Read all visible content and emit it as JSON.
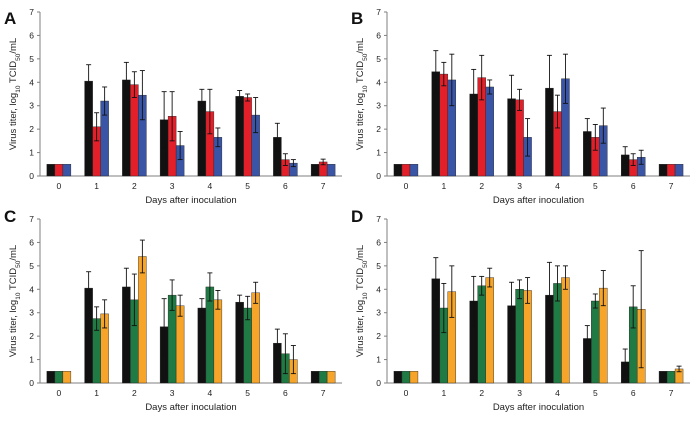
{
  "colors": {
    "black": "#111111",
    "red": "#e3202a",
    "blue": "#3a55a6",
    "green": "#1f7a44",
    "orange": "#f6a52a",
    "axis": "#7f7f7f"
  },
  "chart_data": [
    {
      "type": "bar",
      "panel": "A",
      "categories": [
        "0",
        "1",
        "2",
        "3",
        "4",
        "5",
        "6",
        "7"
      ],
      "xlabel": "Days after inoculation",
      "ylabel": "Virus titer, log10 TCID50/mL",
      "ylim": [
        0,
        7
      ],
      "yticks": [
        0,
        1,
        2,
        3,
        4,
        5,
        6,
        7
      ],
      "error_bars": true,
      "series": [
        {
          "color": "#111111",
          "values": [
            0.5,
            4.05,
            4.1,
            2.4,
            3.2,
            3.4,
            1.65,
            0.5
          ],
          "errors": [
            0,
            0.7,
            0.75,
            1.2,
            0.5,
            0.25,
            0.6,
            0
          ]
        },
        {
          "color": "#e3202a",
          "values": [
            0.5,
            2.1,
            3.9,
            2.55,
            2.75,
            3.35,
            0.7,
            0.6
          ],
          "errors": [
            0,
            0.6,
            0.55,
            1.05,
            0.95,
            0.15,
            0.25,
            0.12
          ]
        },
        {
          "color": "#3a55a6",
          "values": [
            0.5,
            3.2,
            3.45,
            1.3,
            1.65,
            2.6,
            0.55,
            0.5
          ],
          "errors": [
            0,
            0.6,
            1.05,
            0.6,
            0.4,
            0.75,
            0.15,
            0
          ]
        }
      ]
    },
    {
      "type": "bar",
      "panel": "B",
      "categories": [
        "0",
        "1",
        "2",
        "3",
        "4",
        "5",
        "6",
        "7"
      ],
      "xlabel": "Days after inoculation",
      "ylabel": "Virus titer, log10 TCID50/mL",
      "ylim": [
        0,
        7
      ],
      "yticks": [
        0,
        1,
        2,
        3,
        4,
        5,
        6,
        7
      ],
      "error_bars": true,
      "series": [
        {
          "color": "#111111",
          "values": [
            0.5,
            4.45,
            3.5,
            3.3,
            3.75,
            1.9,
            0.9,
            0.5
          ],
          "errors": [
            0,
            0.9,
            1.05,
            1.0,
            1.4,
            0.55,
            0.35,
            0
          ]
        },
        {
          "color": "#e3202a",
          "values": [
            0.5,
            4.35,
            4.2,
            3.25,
            2.75,
            1.65,
            0.7,
            0.5
          ],
          "errors": [
            0,
            0.5,
            0.95,
            0.45,
            0.7,
            0.55,
            0.25,
            0
          ]
        },
        {
          "color": "#3a55a6",
          "values": [
            0.5,
            4.1,
            3.8,
            1.65,
            4.15,
            2.15,
            0.8,
            0.5
          ],
          "errors": [
            0,
            1.1,
            0.3,
            0.8,
            1.05,
            0.75,
            0.3,
            0
          ]
        }
      ]
    },
    {
      "type": "bar",
      "panel": "C",
      "categories": [
        "0",
        "1",
        "2",
        "3",
        "4",
        "5",
        "6",
        "7"
      ],
      "xlabel": "Days after inoculation",
      "ylabel": "Virus titer, log10 TCID50/mL",
      "ylim": [
        0,
        7
      ],
      "yticks": [
        0,
        1,
        2,
        3,
        4,
        5,
        6,
        7
      ],
      "error_bars": true,
      "series": [
        {
          "color": "#111111",
          "values": [
            0.5,
            4.05,
            4.1,
            2.4,
            3.2,
            3.45,
            1.7,
            0.5
          ],
          "errors": [
            0,
            0.7,
            0.8,
            1.2,
            0.4,
            0.3,
            0.6,
            0
          ]
        },
        {
          "color": "#1f7a44",
          "values": [
            0.5,
            2.75,
            3.55,
            3.75,
            4.1,
            3.2,
            1.25,
            0.5
          ],
          "errors": [
            0,
            0.5,
            1.1,
            0.65,
            0.6,
            0.5,
            0.85,
            0
          ]
        },
        {
          "color": "#f6a52a",
          "values": [
            0.5,
            2.95,
            5.4,
            3.3,
            3.55,
            3.85,
            1.0,
            0.5
          ],
          "errors": [
            0,
            0.6,
            0.7,
            0.45,
            0.4,
            0.45,
            0.6,
            0
          ]
        }
      ]
    },
    {
      "type": "bar",
      "panel": "D",
      "categories": [
        "0",
        "1",
        "2",
        "3",
        "4",
        "5",
        "6",
        "7"
      ],
      "xlabel": "Days after inoculation",
      "ylabel": "Virus titer, log10 TCID50/mL",
      "ylim": [
        0,
        7
      ],
      "yticks": [
        0,
        1,
        2,
        3,
        4,
        5,
        6,
        7
      ],
      "error_bars": true,
      "series": [
        {
          "color": "#111111",
          "values": [
            0.5,
            4.45,
            3.5,
            3.3,
            3.75,
            1.9,
            0.9,
            0.5
          ],
          "errors": [
            0,
            0.9,
            1.05,
            1.0,
            1.4,
            0.55,
            0.55,
            0
          ]
        },
        {
          "color": "#1f7a44",
          "values": [
            0.5,
            3.2,
            4.15,
            4.0,
            4.25,
            3.5,
            3.25,
            0.5
          ],
          "errors": [
            0,
            1.05,
            0.4,
            0.4,
            0.75,
            0.3,
            0.9,
            0
          ]
        },
        {
          "color": "#f6a52a",
          "values": [
            0.5,
            3.9,
            4.5,
            3.95,
            4.5,
            4.05,
            3.15,
            0.6
          ],
          "errors": [
            0,
            1.1,
            0.4,
            0.55,
            0.5,
            0.75,
            2.5,
            0.12
          ]
        }
      ]
    }
  ]
}
